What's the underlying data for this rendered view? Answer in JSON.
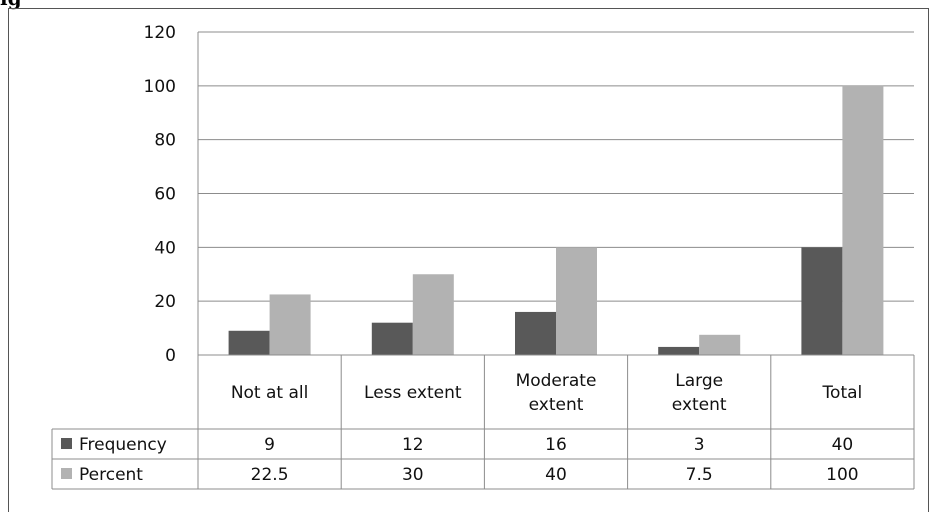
{
  "caption_fragment": "ig",
  "colors": {
    "frequency": "#595959",
    "percent": "#b2b2b2",
    "grid": "#8c8c8c",
    "axis": "#8c8c8c"
  },
  "chart_data": {
    "type": "bar",
    "categories": [
      "Not at all",
      "Less extent",
      "Moderate extent",
      "Large extent",
      "Total"
    ],
    "category_lines": [
      [
        "Not at all"
      ],
      [
        "Less extent"
      ],
      [
        "Moderate",
        "extent"
      ],
      [
        "Large",
        "extent"
      ],
      [
        "Total"
      ]
    ],
    "series": [
      {
        "name": "Frequency",
        "values": [
          9,
          12,
          16,
          3,
          40
        ],
        "labels": [
          "9",
          "12",
          "16",
          "3",
          "40"
        ]
      },
      {
        "name": "Percent",
        "values": [
          22.5,
          30,
          40,
          7.5,
          100
        ],
        "labels": [
          "22.5",
          "30",
          "40",
          "7.5",
          "100"
        ]
      }
    ],
    "yticks": [
      "0",
      "20",
      "40",
      "60",
      "80",
      "100",
      "120"
    ],
    "ylim": [
      0,
      120
    ],
    "grid": true,
    "legend": "data-table"
  }
}
